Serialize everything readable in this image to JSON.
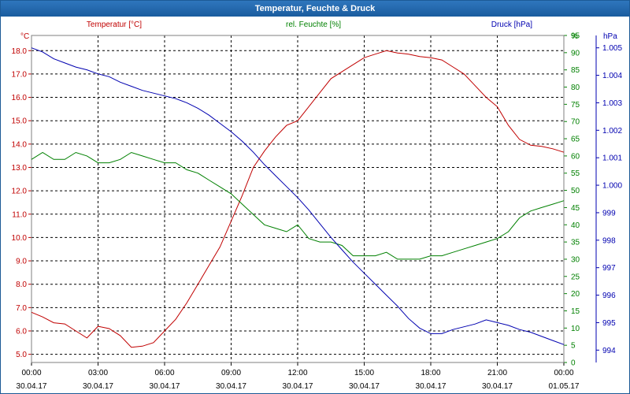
{
  "window": {
    "title": "Temperatur, Feuchte & Druck"
  },
  "colors": {
    "temperature": "#c00000",
    "humidity": "#008000",
    "pressure": "#0000b0",
    "axis_text": "#000000"
  },
  "chart_data": {
    "type": "line",
    "title": "Temperatur, Feuchte & Druck",
    "grid": true,
    "x": [
      "00:00",
      "00:30",
      "01:00",
      "01:30",
      "02:00",
      "02:30",
      "03:00",
      "03:30",
      "04:00",
      "04:30",
      "05:00",
      "05:30",
      "06:00",
      "06:30",
      "07:00",
      "07:30",
      "08:00",
      "08:30",
      "09:00",
      "09:30",
      "10:00",
      "10:30",
      "11:00",
      "11:30",
      "12:00",
      "12:30",
      "13:00",
      "13:30",
      "14:00",
      "14:30",
      "15:00",
      "15:30",
      "16:00",
      "16:30",
      "17:00",
      "17:30",
      "18:00",
      "18:30",
      "19:00",
      "19:30",
      "20:00",
      "20:30",
      "21:00",
      "21:30",
      "22:00",
      "22:30",
      "23:00",
      "23:30",
      "00:00"
    ],
    "x_ticks": [
      {
        "time": "00:00",
        "date": "30.04.17"
      },
      {
        "time": "03:00",
        "date": "30.04.17"
      },
      {
        "time": "06:00",
        "date": "30.04.17"
      },
      {
        "time": "09:00",
        "date": "30.04.17"
      },
      {
        "time": "12:00",
        "date": "30.04.17"
      },
      {
        "time": "15:00",
        "date": "30.04.17"
      },
      {
        "time": "18:00",
        "date": "30.04.17"
      },
      {
        "time": "21:00",
        "date": "30.04.17"
      },
      {
        "time": "00:00",
        "date": "01.05.17"
      }
    ],
    "axes": {
      "temperature": {
        "unit": "°C",
        "ylim": [
          4.65,
          18.65
        ],
        "ticks": [
          "5.0",
          "6.0",
          "7.0",
          "8.0",
          "9.0",
          "10.0",
          "11.0",
          "12.0",
          "13.0",
          "14.0",
          "15.0",
          "16.0",
          "17.0",
          "18.0"
        ]
      },
      "humidity": {
        "unit": "%",
        "ylim": [
          0,
          95
        ],
        "ticks": [
          "0",
          "5",
          "10",
          "15",
          "20",
          "25",
          "30",
          "35",
          "40",
          "45",
          "50",
          "55",
          "60",
          "65",
          "70",
          "75",
          "80",
          "85",
          "90",
          "95"
        ]
      },
      "pressure": {
        "unit": "hPa",
        "ylim": [
          993.55,
          1005.45
        ],
        "ticks": [
          "994",
          "995",
          "996",
          "997",
          "998",
          "999",
          "1.000",
          "1.001",
          "1.002",
          "1.003",
          "1.004",
          "1.005"
        ]
      }
    },
    "series": [
      {
        "name": "Temperatur [°C]",
        "axis": "temperature",
        "values": [
          6.8,
          6.6,
          6.35,
          6.3,
          6.0,
          5.7,
          6.2,
          6.1,
          5.8,
          5.3,
          5.35,
          5.5,
          6.0,
          6.5,
          7.2,
          8.0,
          8.8,
          9.6,
          10.7,
          11.8,
          13.0,
          13.7,
          14.3,
          14.8,
          15.0,
          15.6,
          16.2,
          16.8,
          17.1,
          17.4,
          17.7,
          17.85,
          18.0,
          17.9,
          17.85,
          17.75,
          17.7,
          17.6,
          17.3,
          17.0,
          16.5,
          16.0,
          15.6,
          14.8,
          14.2,
          13.95,
          13.9,
          13.8,
          13.65
        ]
      },
      {
        "name": "rel. Feuchte [%]",
        "axis": "humidity",
        "values": [
          59,
          61,
          59,
          59,
          61,
          60,
          58,
          58,
          59,
          61,
          60,
          59,
          58,
          58,
          56,
          55,
          53,
          51,
          49,
          46,
          43,
          40,
          39,
          38,
          40,
          36,
          35,
          35,
          34,
          31,
          31,
          31,
          32,
          30,
          30,
          30,
          31,
          31,
          32,
          33,
          34,
          35,
          36,
          38,
          42,
          44,
          45,
          46,
          47
        ]
      },
      {
        "name": "Druck [hPa]",
        "axis": "pressure",
        "values": [
          1005.0,
          1004.85,
          1004.6,
          1004.45,
          1004.3,
          1004.2,
          1004.05,
          1003.95,
          1003.75,
          1003.6,
          1003.45,
          1003.35,
          1003.25,
          1003.15,
          1003.0,
          1002.8,
          1002.55,
          1002.25,
          1001.95,
          1001.6,
          1001.2,
          1000.75,
          1000.35,
          999.95,
          999.55,
          999.1,
          998.6,
          998.1,
          997.65,
          997.2,
          996.8,
          996.4,
          996.0,
          995.6,
          995.15,
          994.8,
          994.6,
          994.6,
          994.75,
          994.85,
          994.95,
          995.1,
          995.0,
          994.9,
          994.75,
          994.65,
          994.5,
          994.35,
          994.2
        ]
      }
    ]
  }
}
